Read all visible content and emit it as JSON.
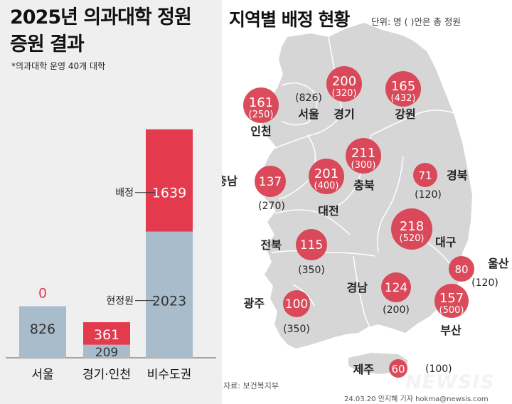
{
  "title": {
    "line1": "2025년 의과대학 정원",
    "line2": "증원 결과"
  },
  "note": "*의과대학 운영 40개 대학",
  "map_title": "지역별 배정 현황",
  "unit_note": "단위: 명 ( )안은 총 정원",
  "source": "자료: 보건복지부",
  "credit": "24.03.20 안지혜 기자 hokma@newsis.com",
  "logo": "NEWSIS",
  "colors": {
    "allocation": "#e33a4d",
    "current": "#a9bccb",
    "circle": "#d94152",
    "map": "#d6d6d6"
  },
  "chart_data": [
    {
      "type": "bar",
      "stacked": true,
      "categories": [
        "서울",
        "경기·인천",
        "비수도권"
      ],
      "series": [
        {
          "name": "현정원",
          "values": [
            826,
            209,
            2023
          ]
        },
        {
          "name": "배정",
          "values": [
            0,
            361,
            1639
          ]
        }
      ],
      "annotations": {
        "allocation": "배정",
        "current": "현정원"
      }
    },
    {
      "type": "table",
      "regions": [
        {
          "name": "서울",
          "allocation": null,
          "total": "(826)"
        },
        {
          "name": "경기",
          "allocation": 200,
          "total": "(320)"
        },
        {
          "name": "인천",
          "allocation": 161,
          "total": "(250)"
        },
        {
          "name": "강원",
          "allocation": 165,
          "total": "(432)"
        },
        {
          "name": "충북",
          "allocation": 211,
          "total": "(300)"
        },
        {
          "name": "대전",
          "allocation": 201,
          "total": "(400)"
        },
        {
          "name": "충남",
          "allocation": 137,
          "total": "(270)"
        },
        {
          "name": "경북",
          "allocation": 71,
          "total": "(120)"
        },
        {
          "name": "대구",
          "allocation": 218,
          "total": "(520)"
        },
        {
          "name": "전북",
          "allocation": 115,
          "total": "(350)"
        },
        {
          "name": "광주",
          "allocation": 100,
          "total": "(350)"
        },
        {
          "name": "경남",
          "allocation": 124,
          "total": "(200)"
        },
        {
          "name": "울산",
          "allocation": 80,
          "total": "(120)"
        },
        {
          "name": "부산",
          "allocation": 157,
          "total": "(500)"
        },
        {
          "name": "제주",
          "allocation": 60,
          "total": "(100)"
        }
      ]
    }
  ]
}
